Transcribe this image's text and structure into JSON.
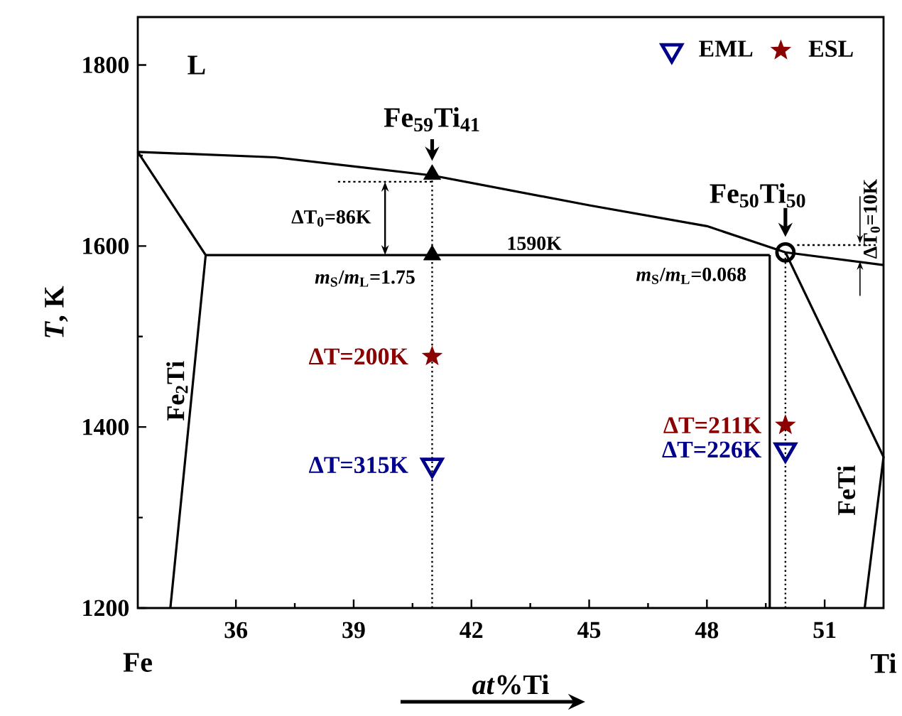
{
  "chart_data": {
    "type": "line",
    "xlabel": "*at*%Ti",
    "ylabel": "*T*, K",
    "xlim": [
      33.5,
      52.5
    ],
    "ylim": [
      1200,
      1853
    ],
    "xticks": [
      36,
      39,
      42,
      45,
      48,
      51
    ],
    "yticks": [
      1200,
      1400,
      1600,
      1800
    ],
    "legend": "top right",
    "grid": false,
    "ref_lines": [
      {
        "axis": "x",
        "value": 41,
        "line_style": "dotted",
        "color": "#000000"
      },
      {
        "axis": "x",
        "value": 50,
        "line_style": "dotted",
        "color": "#000000"
      }
    ],
    "series": [
      {
        "color": "#000000",
        "x": [
          33.5,
          37,
          41,
          45,
          48,
          50,
          52.5
        ],
        "values": [
          1704,
          1698,
          1678,
          1645,
          1622,
          1593,
          1579
        ]
      },
      {
        "color": "#000000",
        "x": [
          33.5,
          35.23,
          34.33
        ],
        "values": [
          1704,
          1590,
          1200
        ]
      },
      {
        "color": "#000000",
        "x": [
          35.23,
          49.6
        ],
        "values": [
          1590,
          1590
        ]
      },
      {
        "color": "#000000",
        "x": [
          49.6,
          49.6
        ],
        "values": [
          1590,
          1200
        ]
      },
      {
        "color": "#000000",
        "x": [
          50,
          52.5,
          52.02
        ],
        "values": [
          1593,
          1367,
          1200
        ]
      },
      {
        "line_style": "dotted",
        "color": "#000000",
        "x": [
          38.6,
          41
        ],
        "values": [
          1671,
          1671
        ]
      },
      {
        "line_style": "dotted",
        "color": "#000000",
        "x": [
          50.3,
          52.3
        ],
        "values": [
          1601,
          1601
        ]
      },
      {
        "type": "scatter",
        "marker": "triangle",
        "color": "#000000",
        "x": [
          41,
          41
        ],
        "values": [
          1679,
          1590
        ]
      },
      {
        "type": "scatter",
        "marker": "circle",
        "color": "#000000",
        "x": [
          50
        ],
        "values": [
          1593
        ]
      },
      {
        "type": "scatter",
        "marker": "triangle-down",
        "name": "EML",
        "color": "#00008b",
        "x": [
          41,
          50
        ],
        "values": [
          1358,
          1375
        ]
      },
      {
        "type": "scatter",
        "marker": "star",
        "name": "ESL",
        "color": "#8b0000",
        "x": [
          41,
          50
        ],
        "values": [
          1478,
          1402
        ]
      }
    ],
    "annotations": [
      "L",
      "Fe$_{59}$Ti$_{41}$",
      "Fe$_{50}$Ti$_{50}$",
      "1590K",
      {
        "text": "ΔT$_{0}$=86K",
        "x": 39.8,
        "y": 1671
      },
      {
        "text": "*m*$_{S}$/*m*$_{L}$=1.75",
        "x": 41,
        "y": 1590
      },
      "*m*$_{S}$/*m*$_{L}$=0.068",
      "ΔT$_{0}$=10K",
      "Fe$_{2}$Ti",
      "FeTi",
      "Fe",
      "Ti",
      {
        "text": "ΔT=200K",
        "x": 41,
        "y": 1478
      },
      {
        "text": "ΔT=315K",
        "x": 41,
        "y": 1358
      },
      {
        "text": "ΔT=211K",
        "x": 50,
        "y": 1402
      },
      {
        "text": "ΔT=226K",
        "x": 50,
        "y": 1375
      }
    ]
  }
}
